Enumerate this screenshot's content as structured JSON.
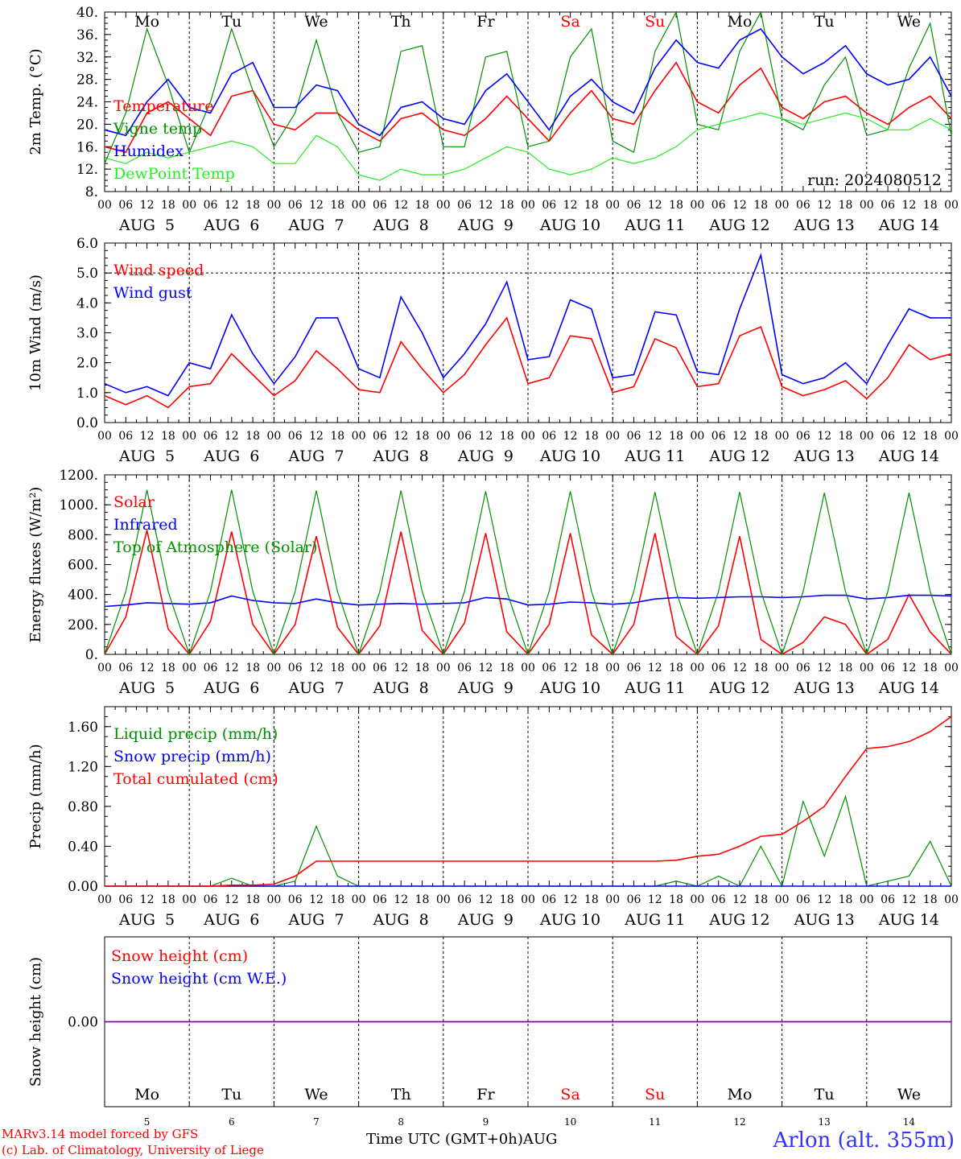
{
  "colors": {
    "red": "#ff0000",
    "green": "#009000",
    "blue": "#0000ff",
    "lightgreen": "#22ee22",
    "purple": "#8000a0",
    "axis": "#000000"
  },
  "day_labels": [
    "Mo",
    "Tu",
    "We",
    "Th",
    "Fr",
    "Sa",
    "Su",
    "Mo",
    "Tu",
    "We"
  ],
  "day_colors": [
    "#000000",
    "#000000",
    "#000000",
    "#000000",
    "#000000",
    "#ff0000",
    "#ff0000",
    "#000000",
    "#000000",
    "#000000"
  ],
  "hour_ticks": [
    "00",
    "06",
    "12",
    "18"
  ],
  "date_labels": [
    "AUG  5",
    "AUG  6",
    "AUG  7",
    "AUG  8",
    "AUG  9",
    "AUG 10",
    "AUG 11",
    "AUG 12",
    "AUG 13",
    "AUG 14"
  ],
  "bottom_day_numbers": [
    "5",
    "6",
    "7",
    "8",
    "9",
    "10",
    "11",
    "12",
    "13",
    "14"
  ],
  "footer": {
    "model": "MARv3.14 model forced by GFS",
    "lab": "(c) Lab. of Climatology, University of Liege",
    "time_axis": "Time UTC (GMT+0h)AUG",
    "station": "Arlon (alt. 355m)"
  },
  "chart_data": [
    {
      "type": "line",
      "ylabel": "2m Temp. (°C)",
      "ylim": [
        8,
        40
      ],
      "yticks": [
        "8.",
        "12.",
        "16.",
        "20.",
        "24.",
        "28.",
        "32.",
        "36.",
        "40."
      ],
      "annotation": "run: 2024080512",
      "legend": [
        "Temperature",
        "Vigne temp",
        "Humidex",
        "DewPoint Temp"
      ],
      "x_hours": [
        0,
        6,
        12,
        18,
        24,
        30,
        36,
        42,
        48,
        54,
        60,
        66,
        72,
        78,
        84,
        90,
        96,
        102,
        108,
        114,
        120,
        126,
        132,
        138,
        144,
        150,
        156,
        162,
        168,
        174,
        180,
        186,
        192,
        198,
        204,
        210,
        216,
        222,
        228,
        234,
        240
      ],
      "series": [
        {
          "name": "Temperature",
          "color": "red",
          "values": [
            16,
            15,
            22,
            24,
            21,
            18,
            25,
            26,
            20,
            19,
            22,
            22,
            19,
            17,
            21,
            22,
            19,
            18,
            21,
            25,
            21,
            17,
            22,
            26,
            21,
            20,
            26,
            31,
            24,
            22,
            27,
            30,
            23,
            21,
            24,
            25,
            22,
            20,
            23,
            25,
            21
          ]
        },
        {
          "name": "Vigne temp",
          "color": "green",
          "values": [
            13,
            22,
            37,
            27,
            15,
            24,
            37,
            26,
            16,
            22,
            35,
            22,
            15,
            16,
            33,
            34,
            16,
            16,
            32,
            33,
            16,
            17,
            32,
            37,
            17,
            15,
            33,
            40,
            20,
            19,
            33,
            40,
            21,
            19,
            27,
            32,
            18,
            19,
            30,
            38,
            18
          ]
        },
        {
          "name": "Humidex",
          "color": "blue",
          "values": [
            19,
            18,
            24,
            28,
            23,
            22,
            29,
            31,
            23,
            23,
            27,
            26,
            20,
            18,
            23,
            24,
            21,
            20,
            26,
            29,
            24,
            19,
            25,
            28,
            24,
            22,
            30,
            35,
            31,
            30,
            35,
            37,
            32,
            29,
            31,
            34,
            29,
            27,
            28,
            32,
            25
          ]
        },
        {
          "name": "DewPoint Temp",
          "color": "lightgreen",
          "values": [
            14,
            13,
            15,
            14,
            15,
            16,
            17,
            16,
            13,
            13,
            18,
            16,
            11,
            10,
            12,
            11,
            11,
            12,
            14,
            16,
            15,
            12,
            11,
            12,
            14,
            13,
            14,
            16,
            19,
            20,
            21,
            22,
            21,
            20,
            21,
            22,
            21,
            19,
            19,
            21,
            19
          ]
        }
      ]
    },
    {
      "type": "line",
      "ylabel": "10m Wind (m/s)",
      "ylim": [
        0,
        6
      ],
      "yticks": [
        "0.0",
        "1.0",
        "2.0",
        "3.0",
        "4.0",
        "5.0",
        "6.0"
      ],
      "legend": [
        "Wind speed",
        "Wind gust"
      ],
      "x_hours": [
        0,
        6,
        12,
        18,
        24,
        30,
        36,
        42,
        48,
        54,
        60,
        66,
        72,
        78,
        84,
        90,
        96,
        102,
        108,
        114,
        120,
        126,
        132,
        138,
        144,
        150,
        156,
        162,
        168,
        174,
        180,
        186,
        192,
        198,
        204,
        210,
        216,
        222,
        228,
        234,
        240
      ],
      "series": [
        {
          "name": "Wind speed",
          "color": "red",
          "values": [
            0.9,
            0.6,
            0.9,
            0.5,
            1.2,
            1.3,
            2.3,
            1.6,
            0.9,
            1.4,
            2.4,
            1.8,
            1.1,
            1.0,
            2.7,
            1.8,
            1.0,
            1.6,
            2.6,
            3.5,
            1.3,
            1.5,
            2.9,
            2.8,
            1.0,
            1.2,
            2.8,
            2.5,
            1.2,
            1.3,
            2.9,
            3.2,
            1.2,
            0.9,
            1.1,
            1.4,
            0.8,
            1.5,
            2.6,
            2.1,
            2.3
          ]
        },
        {
          "name": "Wind gust",
          "color": "blue",
          "values": [
            1.3,
            1.0,
            1.2,
            0.9,
            2.0,
            1.8,
            3.6,
            2.3,
            1.3,
            2.2,
            3.5,
            3.5,
            1.8,
            1.5,
            4.2,
            3.0,
            1.5,
            2.3,
            3.3,
            4.7,
            2.1,
            2.2,
            4.1,
            3.8,
            1.5,
            1.6,
            3.7,
            3.6,
            1.7,
            1.6,
            3.8,
            5.6,
            1.6,
            1.3,
            1.5,
            2.0,
            1.3,
            2.6,
            3.8,
            3.5,
            3.5
          ]
        }
      ]
    },
    {
      "type": "line",
      "ylabel": "Energy fluxes (W/m²)",
      "ylim": [
        0,
        1200
      ],
      "yticks": [
        "0.",
        "200.",
        "400.",
        "600.",
        "800.",
        "1000.",
        "1200."
      ],
      "legend": [
        "Solar",
        "Infrared",
        "Top of Atmosphere (Solar)"
      ],
      "x_hours": [
        0,
        6,
        12,
        18,
        24,
        30,
        36,
        42,
        48,
        54,
        60,
        66,
        72,
        78,
        84,
        90,
        96,
        102,
        108,
        114,
        120,
        126,
        132,
        138,
        144,
        150,
        156,
        162,
        168,
        174,
        180,
        186,
        192,
        198,
        204,
        210,
        216,
        222,
        228,
        234,
        240
      ],
      "series": [
        {
          "name": "Solar",
          "color": "red",
          "values": [
            0,
            250,
            830,
            170,
            0,
            220,
            820,
            200,
            0,
            200,
            790,
            180,
            0,
            190,
            820,
            160,
            0,
            210,
            810,
            150,
            0,
            200,
            810,
            130,
            0,
            200,
            810,
            120,
            0,
            190,
            790,
            100,
            0,
            80,
            250,
            200,
            0,
            100,
            400,
            150,
            0
          ]
        },
        {
          "name": "Infrared",
          "color": "blue",
          "values": [
            320,
            330,
            345,
            340,
            335,
            345,
            390,
            360,
            345,
            340,
            370,
            345,
            330,
            335,
            340,
            335,
            340,
            345,
            380,
            370,
            330,
            335,
            350,
            345,
            335,
            345,
            370,
            380,
            375,
            380,
            385,
            385,
            380,
            385,
            395,
            395,
            370,
            380,
            395,
            395,
            390
          ]
        },
        {
          "name": "Top of Atmosphere (Solar)",
          "color": "green",
          "values": [
            0,
            420,
            1100,
            420,
            0,
            420,
            1100,
            420,
            0,
            420,
            1095,
            420,
            0,
            420,
            1095,
            420,
            0,
            420,
            1090,
            420,
            0,
            420,
            1090,
            420,
            0,
            420,
            1085,
            420,
            0,
            420,
            1085,
            420,
            0,
            420,
            1080,
            420,
            0,
            420,
            1080,
            420,
            0
          ]
        }
      ]
    },
    {
      "type": "line",
      "ylabel": "Precip (mm/h)",
      "ylim": [
        0,
        1.8
      ],
      "yticks": [
        "0.00",
        "0.40",
        "0.80",
        "1.20",
        "1.60"
      ],
      "legend": [
        "Liquid precip (mm/h)",
        "Snow precip (mm/h)",
        "Total cumulated (cm)"
      ],
      "x_hours": [
        0,
        6,
        12,
        18,
        24,
        30,
        36,
        42,
        48,
        54,
        60,
        66,
        72,
        78,
        84,
        90,
        96,
        102,
        108,
        114,
        120,
        126,
        132,
        138,
        144,
        150,
        156,
        162,
        168,
        174,
        180,
        186,
        192,
        198,
        204,
        210,
        216,
        222,
        228,
        234,
        240
      ],
      "series": [
        {
          "name": "Liquid precip (mm/h)",
          "color": "green",
          "values": [
            0,
            0,
            0,
            0,
            0,
            0,
            0.08,
            0,
            0,
            0.05,
            0.6,
            0.1,
            0,
            0,
            0,
            0,
            0,
            0,
            0,
            0,
            0,
            0,
            0,
            0,
            0,
            0,
            0,
            0.05,
            0,
            0.1,
            0,
            0.4,
            0,
            0.85,
            0.3,
            0.9,
            0,
            0.05,
            0.1,
            0.45,
            0
          ]
        },
        {
          "name": "Snow precip (mm/h)",
          "color": "blue",
          "values": [
            0,
            0,
            0,
            0,
            0,
            0,
            0,
            0,
            0,
            0,
            0,
            0,
            0,
            0,
            0,
            0,
            0,
            0,
            0,
            0,
            0,
            0,
            0,
            0,
            0,
            0,
            0,
            0,
            0,
            0,
            0,
            0,
            0,
            0,
            0,
            0,
            0,
            0,
            0,
            0,
            0
          ]
        },
        {
          "name": "Total cumulated (cm)",
          "color": "red",
          "values": [
            0,
            0,
            0,
            0,
            0,
            0,
            0.01,
            0.01,
            0.02,
            0.1,
            0.25,
            0.25,
            0.25,
            0.25,
            0.25,
            0.25,
            0.25,
            0.25,
            0.25,
            0.25,
            0.25,
            0.25,
            0.25,
            0.25,
            0.25,
            0.25,
            0.25,
            0.26,
            0.3,
            0.32,
            0.4,
            0.5,
            0.52,
            0.65,
            0.8,
            1.1,
            1.38,
            1.4,
            1.45,
            1.55,
            1.7
          ]
        }
      ]
    },
    {
      "type": "line",
      "ylabel": "Snow height (cm)",
      "ylim": [
        -1,
        1
      ],
      "yticks": [
        "0.00"
      ],
      "legend": [
        "Snow height (cm)",
        "Snow height (cm W.E.)"
      ],
      "x_hours": [
        0,
        240
      ],
      "series": [
        {
          "name": "Snow height (cm)",
          "color": "red",
          "values": [
            0,
            0
          ]
        },
        {
          "name": "Snow height (cm W.E.)",
          "color": "blue",
          "values": [
            0,
            0
          ]
        }
      ]
    }
  ]
}
